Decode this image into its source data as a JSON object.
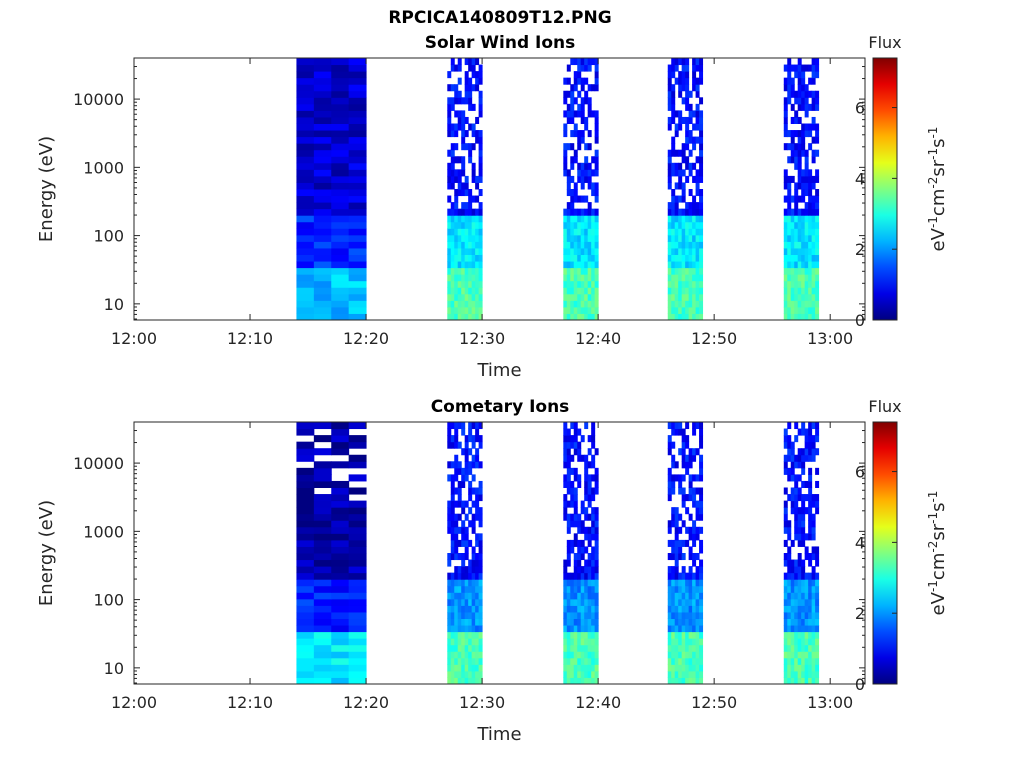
{
  "figure_title": "RPCICA140809T12.PNG",
  "colorbar": {
    "label": "Flux",
    "unit_text": "eV",
    "range": [
      0,
      7.4
    ],
    "ticks": [
      "0",
      "2",
      "4",
      "6"
    ],
    "colormap": "jet"
  },
  "chart_data": [
    {
      "type": "heatmap",
      "title": "Solar Wind Ions",
      "xlabel": "Time",
      "ylabel": "Energy (eV)",
      "yscale": "log",
      "ylim": [
        5.8,
        40000
      ],
      "xlim": [
        "12:00",
        "13:03"
      ],
      "xticks": [
        "12:00",
        "12:10",
        "12:20",
        "12:30",
        "12:40",
        "12:50",
        "13:00"
      ],
      "yticks": [
        "10",
        "100",
        "1000",
        "10000"
      ],
      "grid": false,
      "data_blocks": [
        {
          "start": "12:14",
          "end": "12:20",
          "flux_low_energy": 2.3,
          "flux_mid_energy": 1.2,
          "flux_high_energy": 0.6
        },
        {
          "start": "12:27",
          "end": "12:30",
          "flux_low_energy": 3.3,
          "flux_mid_energy": 2.6,
          "flux_high_energy": 1.0
        },
        {
          "start": "12:37",
          "end": "12:40",
          "flux_low_energy": 3.3,
          "flux_mid_energy": 2.6,
          "flux_high_energy": 1.0
        },
        {
          "start": "12:46",
          "end": "12:49",
          "flux_low_energy": 3.3,
          "flux_mid_energy": 2.6,
          "flux_high_energy": 1.0
        },
        {
          "start": "12:56",
          "end": "12:59",
          "flux_low_energy": 3.3,
          "flux_mid_energy": 2.6,
          "flux_high_energy": 1.0
        }
      ]
    },
    {
      "type": "heatmap",
      "title": "Cometary Ions",
      "xlabel": "Time",
      "ylabel": "Energy (eV)",
      "yscale": "log",
      "ylim": [
        5.8,
        40000
      ],
      "xlim": [
        "12:00",
        "13:03"
      ],
      "xticks": [
        "12:00",
        "12:10",
        "12:20",
        "12:30",
        "12:40",
        "12:50",
        "13:00"
      ],
      "yticks": [
        "10",
        "100",
        "1000",
        "10000"
      ],
      "grid": false,
      "data_blocks": [
        {
          "start": "12:14",
          "end": "12:20",
          "flux_low_energy": 2.6,
          "flux_mid_energy": 1.2,
          "flux_high_energy": 0.3
        },
        {
          "start": "12:27",
          "end": "12:30",
          "flux_low_energy": 3.3,
          "flux_mid_energy": 2.0,
          "flux_high_energy": 1.0
        },
        {
          "start": "12:37",
          "end": "12:40",
          "flux_low_energy": 3.3,
          "flux_mid_energy": 2.0,
          "flux_high_energy": 1.0
        },
        {
          "start": "12:46",
          "end": "12:49",
          "flux_low_energy": 3.3,
          "flux_mid_energy": 2.0,
          "flux_high_energy": 1.0
        },
        {
          "start": "12:56",
          "end": "12:59",
          "flux_low_energy": 3.3,
          "flux_mid_energy": 2.0,
          "flux_high_energy": 1.0
        }
      ]
    }
  ]
}
